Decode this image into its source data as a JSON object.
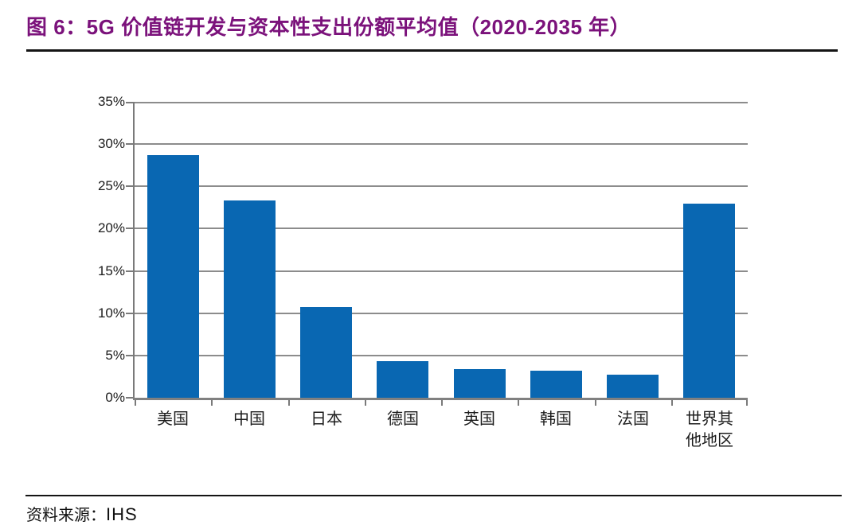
{
  "page": {
    "title": "图 6：5G 价值链开发与资本性支出份额平均值（2020-2035 年）",
    "title_color": "#7B127B",
    "source_prefix": "资料来源：",
    "source_value": "IHS"
  },
  "chart_data": {
    "type": "bar",
    "title": "5G 价值链开发与资本性支出份额平均值（2020-2035 年）",
    "categories": [
      "美国",
      "中国",
      "日本",
      "德国",
      "英国",
      "韩国",
      "法国",
      "世界其\n他地区"
    ],
    "values": [
      28.7,
      23.3,
      10.7,
      4.3,
      3.4,
      3.2,
      2.7,
      23.0
    ],
    "unit": "%",
    "xlabel": "",
    "ylabel": "",
    "ylim": [
      0,
      35
    ],
    "ytick_step": 5,
    "ytick_labels": [
      "0%",
      "5%",
      "10%",
      "15%",
      "20%",
      "25%",
      "30%",
      "35%"
    ],
    "grid": true,
    "legend": "none",
    "bar_color": "#0967B2",
    "gridline_color": "#8c8c8c",
    "axis_color": "#7a7a7a"
  }
}
